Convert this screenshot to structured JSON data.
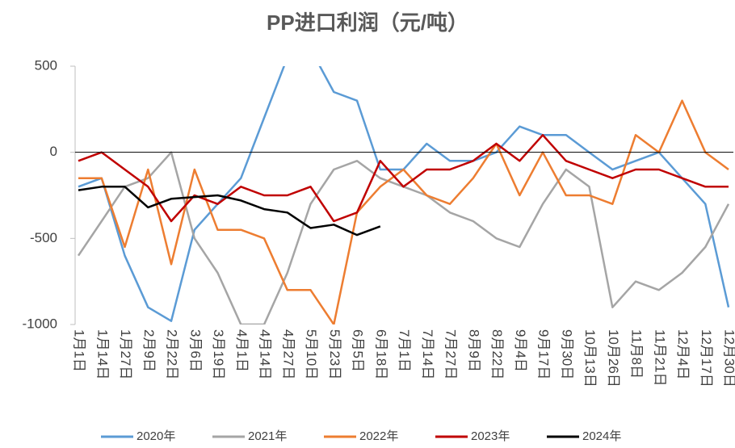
{
  "chart_data": {
    "type": "line",
    "title": "PP进口利润（元/吨）",
    "x": [
      0,
      13,
      26,
      39,
      52,
      65,
      78,
      91,
      104,
      117,
      130,
      143,
      156,
      169,
      182,
      195,
      208,
      221,
      234,
      247,
      260,
      273,
      286,
      299,
      312,
      325,
      338,
      351,
      364
    ],
    "xlim": [
      0,
      364
    ],
    "xticks": [
      {
        "value": 0,
        "label": "1月1日"
      },
      {
        "value": 13,
        "label": "1月14日"
      },
      {
        "value": 26,
        "label": "1月27日"
      },
      {
        "value": 39,
        "label": "2月9日"
      },
      {
        "value": 52,
        "label": "2月22日"
      },
      {
        "value": 65,
        "label": "3月6日"
      },
      {
        "value": 78,
        "label": "3月19日"
      },
      {
        "value": 91,
        "label": "4月1日"
      },
      {
        "value": 104,
        "label": "4月14日"
      },
      {
        "value": 117,
        "label": "4月27日"
      },
      {
        "value": 130,
        "label": "5月10日"
      },
      {
        "value": 143,
        "label": "5月23日"
      },
      {
        "value": 156,
        "label": "6月5日"
      },
      {
        "value": 169,
        "label": "6月18日"
      },
      {
        "value": 182,
        "label": "7月1日"
      },
      {
        "value": 195,
        "label": "7月14日"
      },
      {
        "value": 208,
        "label": "7月27日"
      },
      {
        "value": 221,
        "label": "8月9日"
      },
      {
        "value": 234,
        "label": "8月22日"
      },
      {
        "value": 247,
        "label": "9月4日"
      },
      {
        "value": 260,
        "label": "9月17日"
      },
      {
        "value": 273,
        "label": "9月30日"
      },
      {
        "value": 286,
        "label": "10月13日"
      },
      {
        "value": 299,
        "label": "10月26日"
      },
      {
        "value": 312,
        "label": "11月8日"
      },
      {
        "value": 325,
        "label": "11月21日"
      },
      {
        "value": 338,
        "label": "12月4日"
      },
      {
        "value": 351,
        "label": "12月17日"
      },
      {
        "value": 364,
        "label": "12月30日"
      }
    ],
    "ylim": [
      -1000,
      500
    ],
    "yticks": [
      -1000,
      -500,
      0,
      500
    ],
    "series": [
      {
        "name": "2020年",
        "color": "#5b9bd5",
        "values": [
          -200,
          -150,
          -600,
          -900,
          -980,
          -450,
          -300,
          -150,
          200,
          550,
          600,
          350,
          300,
          -100,
          -100,
          50,
          -50,
          -50,
          0,
          150,
          100,
          100,
          0,
          -100,
          -50,
          0,
          -150,
          -300,
          -900
        ]
      },
      {
        "name": "2021年",
        "color": "#a5a5a5",
        "values": [
          -600,
          -400,
          -200,
          -150,
          0,
          -500,
          -700,
          -1000,
          -1000,
          -700,
          -300,
          -100,
          -50,
          -150,
          -200,
          -250,
          -350,
          -400,
          -500,
          -550,
          -300,
          -100,
          -200,
          -900,
          -750,
          -800,
          -700,
          -550,
          -300
        ]
      },
      {
        "name": "2022年",
        "color": "#ed7d31",
        "values": [
          -150,
          -150,
          -550,
          -100,
          -650,
          -100,
          -450,
          -450,
          -500,
          -800,
          -800,
          -1000,
          -350,
          -200,
          -100,
          -250,
          -300,
          -150,
          50,
          -250,
          0,
          -250,
          -250,
          -300,
          100,
          0,
          300,
          0,
          -100
        ]
      },
      {
        "name": "2023年",
        "color": "#c00000",
        "values": [
          -50,
          0,
          -100,
          -200,
          -400,
          -250,
          -300,
          -200,
          -250,
          -250,
          -200,
          -400,
          -350,
          -50,
          -200,
          -100,
          -100,
          -50,
          50,
          -50,
          100,
          -50,
          -100,
          -150,
          -100,
          -100,
          -150,
          -200,
          -200
        ]
      },
      {
        "name": "2024年",
        "color": "#000000",
        "values": [
          -220,
          -200,
          -200,
          -320,
          -270,
          -260,
          -250,
          -280,
          -330,
          -350,
          -440,
          -420,
          -480,
          -430,
          null,
          null,
          null,
          null,
          null,
          null,
          null,
          null,
          null,
          null,
          null,
          null,
          null,
          null,
          null
        ]
      }
    ]
  }
}
